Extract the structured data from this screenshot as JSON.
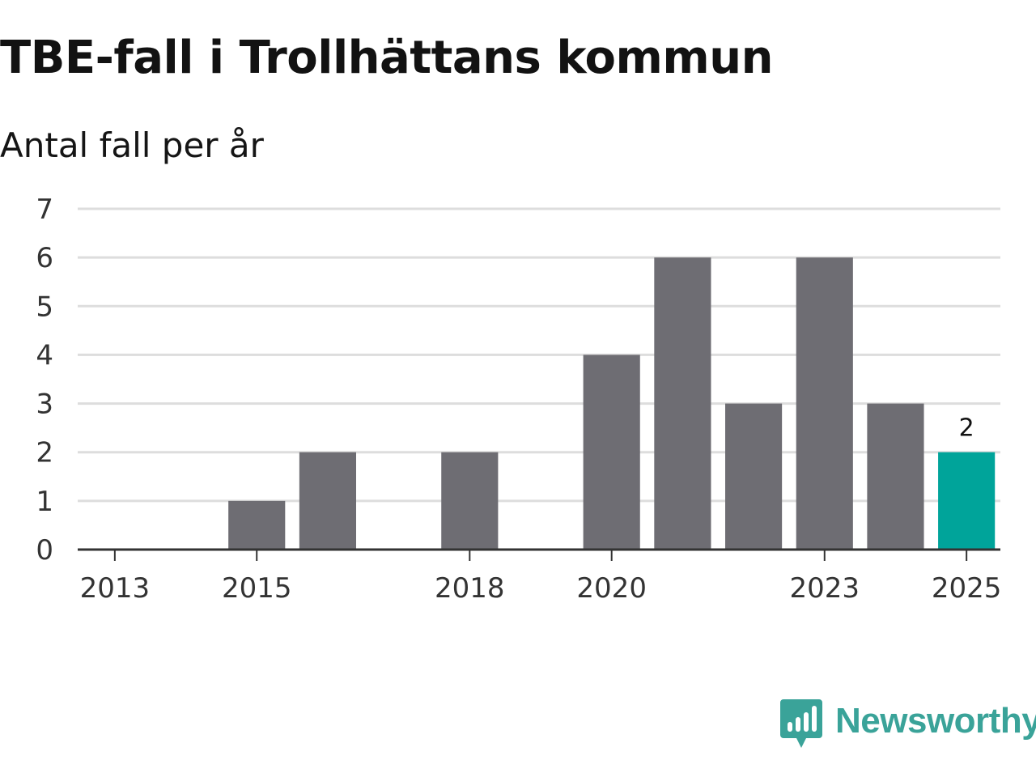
{
  "chart_data": {
    "type": "bar",
    "title": "TBE-fall i Trollhättans kommun",
    "subtitle": "Antal fall per år",
    "xlabel": "",
    "ylabel": "",
    "categories": [
      "2013",
      "2014",
      "2015",
      "2016",
      "2017",
      "2018",
      "2019",
      "2020",
      "2021",
      "2022",
      "2023",
      "2024",
      "2025"
    ],
    "values": [
      0,
      0,
      1,
      2,
      0,
      2,
      0,
      4,
      6,
      3,
      6,
      3,
      2
    ],
    "x_tick_labels": [
      "2013",
      "2015",
      "2018",
      "2020",
      "2023",
      "2025"
    ],
    "y_ticks": [
      0,
      1,
      2,
      3,
      4,
      5,
      6,
      7
    ],
    "ylim": [
      0,
      7
    ],
    "grid": true,
    "highlight": {
      "category": "2025",
      "label": "2"
    },
    "colors": {
      "bar": "#6e6d73",
      "highlight": "#00a49a",
      "grid": "#dddddd",
      "axis": "#333333"
    }
  },
  "brand": {
    "name": "Newsworthy",
    "icon": "newsworthy-logo-icon",
    "color": "#3aa399"
  }
}
